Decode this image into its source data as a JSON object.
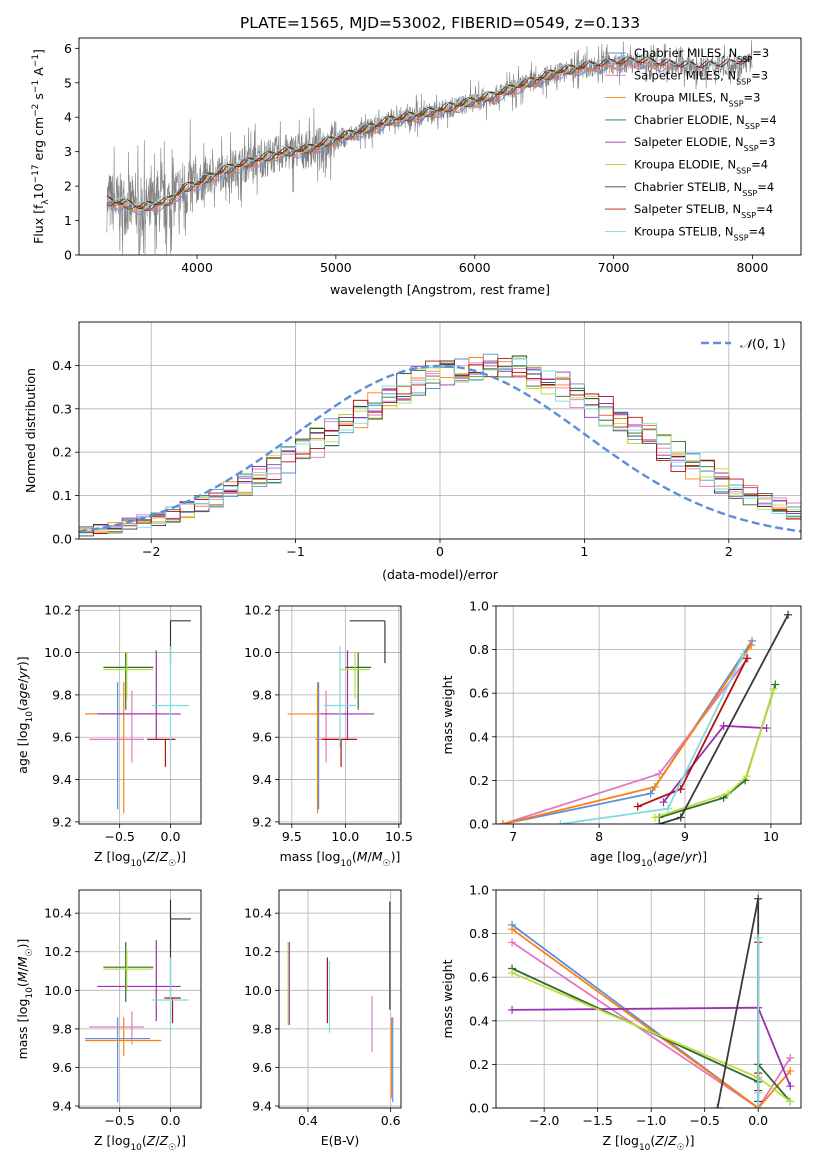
{
  "title": "PLATE=1565, MJD=53002, FIBERID=0549, z=0.133",
  "colors": {
    "Chabrier MILES": "#5b8fd9",
    "Salpeter MILES": "#e377c2",
    "Kroupa MILES": "#ff7f0e",
    "Chabrier ELODIE": "#2f6b2f",
    "Salpeter ELODIE": "#9b30b0",
    "Kroupa ELODIE": "#b8e03a",
    "Chabrier STELIB": "#3a3a3a",
    "Salpeter STELIB": "#b01010",
    "Kroupa STELIB": "#7fdbe0",
    "normal": "#5b8fd9",
    "data": "#808080"
  },
  "chart_data": [
    {
      "type": "line",
      "panel": "spectrum",
      "xlabel": "wavelength [Angstrom, rest frame]",
      "ylabel": "Flux [f_λ 10^-17 erg cm^-2 s^-1 A^-1]",
      "xlim": [
        3150,
        8350
      ],
      "ylim": [
        0,
        6.3
      ],
      "xticks": [
        4000,
        5000,
        6000,
        7000,
        8000
      ],
      "yticks": [
        0,
        1,
        2,
        3,
        4,
        5,
        6
      ],
      "grid": false,
      "legend_position": "top-right",
      "continuum": {
        "x": [
          3350,
          3500,
          3600,
          3700,
          3800,
          3900,
          4000,
          4100,
          4200,
          4400,
          4600,
          4800,
          5000,
          5200,
          5400,
          5600,
          5800,
          6000,
          6200,
          6400,
          6600,
          6800,
          7000,
          7200,
          7400,
          7600,
          7800,
          8000
        ],
        "y": [
          1.55,
          1.45,
          1.35,
          1.45,
          1.55,
          1.9,
          2.05,
          2.25,
          2.45,
          2.7,
          2.95,
          3.05,
          3.35,
          3.6,
          3.9,
          4.05,
          4.25,
          4.45,
          4.7,
          5.0,
          5.3,
          5.45,
          5.55,
          5.6,
          5.5,
          5.45,
          5.5,
          5.6
        ]
      },
      "legend": [
        {
          "name": "Chabrier MILES, N_SSP=3",
          "key": "Chabrier MILES"
        },
        {
          "name": "Salpeter MILES, N_SSP=3",
          "key": "Salpeter MILES"
        },
        {
          "name": "Kroupa MILES, N_SSP=3",
          "key": "Kroupa MILES"
        },
        {
          "name": "Chabrier ELODIE, N_SSP=4",
          "key": "Chabrier ELODIE"
        },
        {
          "name": "Salpeter ELODIE, N_SSP=3",
          "key": "Salpeter ELODIE"
        },
        {
          "name": "Kroupa ELODIE, N_SSP=4",
          "key": "Kroupa ELODIE"
        },
        {
          "name": "Chabrier STELIB, N_SSP=4",
          "key": "Chabrier STELIB"
        },
        {
          "name": "Salpeter STELIB, N_SSP=4",
          "key": "Salpeter STELIB"
        },
        {
          "name": "Kroupa STELIB, N_SSP=4",
          "key": "Kroupa STELIB"
        }
      ]
    },
    {
      "type": "step",
      "panel": "residuals",
      "xlabel": "(data-model)/error",
      "ylabel": "Normed distribution",
      "xlim": [
        -2.5,
        2.5
      ],
      "ylim": [
        0,
        0.5
      ],
      "xticks": [
        -2,
        -1,
        0,
        1,
        2
      ],
      "yticks": [
        0.0,
        0.1,
        0.2,
        0.3,
        0.4
      ],
      "grid": true,
      "bin_width": 0.1,
      "bins_start": -2.5,
      "mean_profile": [
        0.018,
        0.022,
        0.027,
        0.033,
        0.04,
        0.048,
        0.057,
        0.067,
        0.079,
        0.092,
        0.107,
        0.123,
        0.141,
        0.16,
        0.18,
        0.2,
        0.222,
        0.244,
        0.266,
        0.288,
        0.309,
        0.329,
        0.347,
        0.363,
        0.377,
        0.387,
        0.395,
        0.399,
        0.4,
        0.397,
        0.39,
        0.38,
        0.367,
        0.351,
        0.334,
        0.315,
        0.295,
        0.274,
        0.253,
        0.232,
        0.211,
        0.19,
        0.17,
        0.151,
        0.133,
        0.117,
        0.101,
        0.087,
        0.075,
        0.064
      ],
      "normal_curve": {
        "name": "N(0,1)",
        "mean": 0,
        "sigma": 1
      },
      "legend_position": "top-right"
    },
    {
      "type": "errorbar",
      "panel": "age_vs_Z",
      "xlabel": "Z [log10(Z/Z☉)]",
      "ylabel": "age [log10(age/yr)]",
      "xlim": [
        -0.9,
        0.3
      ],
      "ylim": [
        9.19,
        10.22
      ],
      "xticks": [
        -0.5,
        0.0
      ],
      "yticks": [
        9.2,
        9.4,
        9.6,
        9.8,
        10.0,
        10.2
      ],
      "grid": true,
      "points": [
        {
          "key": "Chabrier MILES",
          "x": -0.52,
          "y": 9.71,
          "xerr": [
            0.32,
            0.32
          ],
          "yerr": [
            0.45,
            0.15
          ]
        },
        {
          "key": "Salpeter MILES",
          "x": -0.38,
          "y": 9.59,
          "xerr": [
            0.42,
            0.12
          ],
          "yerr": [
            0.11,
            0.23
          ]
        },
        {
          "key": "Kroupa MILES",
          "x": -0.46,
          "y": 9.71,
          "xerr": [
            0.38,
            0.37
          ],
          "yerr": [
            0.47,
            0.15
          ]
        },
        {
          "key": "Chabrier ELODIE",
          "x": -0.44,
          "y": 9.93,
          "xerr": [
            0.22,
            0.27
          ],
          "yerr": [
            0.2,
            0.07
          ]
        },
        {
          "key": "Salpeter ELODIE",
          "x": -0.14,
          "y": 9.71,
          "xerr": [
            0.58,
            0.24
          ],
          "yerr": [
            0.12,
            0.3
          ]
        },
        {
          "key": "Kroupa ELODIE",
          "x": -0.43,
          "y": 9.92,
          "xerr": [
            0.23,
            0.26
          ],
          "yerr": [
            0.14,
            0.08
          ]
        },
        {
          "key": "Chabrier STELIB",
          "x": 0.0,
          "y": 10.15,
          "xerr": [
            0.0,
            0.2
          ],
          "yerr": [
            0.2,
            0.0
          ]
        },
        {
          "key": "Salpeter STELIB",
          "x": -0.05,
          "y": 9.59,
          "xerr": [
            0.18,
            0.1
          ],
          "yerr": [
            0.13,
            0.0
          ]
        },
        {
          "key": "Kroupa STELIB",
          "x": 0.0,
          "y": 9.75,
          "xerr": [
            0.18,
            0.18
          ],
          "yerr": [
            0.2,
            0.28
          ]
        }
      ]
    },
    {
      "type": "errorbar",
      "panel": "age_vs_mass",
      "xlabel": "mass [log10(M/M☉)]",
      "ylabel": "",
      "xlim": [
        9.38,
        10.52
      ],
      "ylim": [
        9.19,
        10.22
      ],
      "xticks": [
        9.5,
        10.0,
        10.5
      ],
      "yticks": [
        9.2,
        9.4,
        9.6,
        9.8,
        10.0,
        10.2
      ],
      "grid": true,
      "points": [
        {
          "key": "Chabrier MILES",
          "x": 9.75,
          "y": 9.71,
          "xerr": [
            0.03,
            0.03
          ],
          "yerr": [
            0.45,
            0.15
          ]
        },
        {
          "key": "Salpeter MILES",
          "x": 9.82,
          "y": 9.59,
          "xerr": [
            0.1,
            0.12
          ],
          "yerr": [
            0.11,
            0.23
          ]
        },
        {
          "key": "Kroupa MILES",
          "x": 9.74,
          "y": 9.71,
          "xerr": [
            0.28,
            0.13
          ],
          "yerr": [
            0.47,
            0.15
          ]
        },
        {
          "key": "Chabrier ELODIE",
          "x": 10.12,
          "y": 9.93,
          "xerr": [
            0.12,
            0.12
          ],
          "yerr": [
            0.2,
            0.07
          ]
        },
        {
          "key": "Salpeter ELODIE",
          "x": 10.02,
          "y": 9.71,
          "xerr": [
            0.25,
            0.25
          ],
          "yerr": [
            0.12,
            0.3
          ]
        },
        {
          "key": "Kroupa ELODIE",
          "x": 10.09,
          "y": 9.92,
          "xerr": [
            0.14,
            0.14
          ],
          "yerr": [
            0.14,
            0.08
          ]
        },
        {
          "key": "Chabrier STELIB",
          "x": 10.37,
          "y": 10.15,
          "xerr": [
            0.33,
            0.0
          ],
          "yerr": [
            0.2,
            0.0
          ]
        },
        {
          "key": "Salpeter STELIB",
          "x": 9.96,
          "y": 9.59,
          "xerr": [
            0.18,
            0.15
          ],
          "yerr": [
            0.13,
            0.0
          ]
        },
        {
          "key": "Kroupa STELIB",
          "x": 9.95,
          "y": 9.75,
          "xerr": [
            0.15,
            0.15
          ],
          "yerr": [
            0.2,
            0.28
          ]
        }
      ]
    },
    {
      "type": "line",
      "panel": "massweight_vs_age",
      "xlabel": "age  [log10(age/yr)]",
      "ylabel": "mass weight",
      "xlim": [
        6.8,
        10.35
      ],
      "ylim": [
        0,
        1.0
      ],
      "xticks": [
        7,
        8,
        9,
        10
      ],
      "yticks": [
        0.0,
        0.2,
        0.4,
        0.6,
        0.8,
        1.0
      ],
      "grid": true,
      "series": [
        {
          "key": "Chabrier MILES",
          "x": [
            6.88,
            8.6,
            9.78
          ],
          "y": [
            0.0,
            0.14,
            0.84
          ]
        },
        {
          "key": "Salpeter MILES",
          "x": [
            6.88,
            8.7,
            9.73
          ],
          "y": [
            0.0,
            0.23,
            0.76
          ]
        },
        {
          "key": "Kroupa MILES",
          "x": [
            6.88,
            8.65,
            9.77
          ],
          "y": [
            0.0,
            0.17,
            0.82
          ]
        },
        {
          "key": "Chabrier ELODIE",
          "x": [
            8.7,
            9.45,
            9.7,
            10.05
          ],
          "y": [
            0.03,
            0.12,
            0.2,
            0.64
          ]
        },
        {
          "key": "Salpeter ELODIE",
          "x": [
            8.75,
            9.45,
            9.95
          ],
          "y": [
            0.1,
            0.45,
            0.44
          ]
        },
        {
          "key": "Kroupa ELODIE",
          "x": [
            8.65,
            9.5,
            9.72,
            10.03
          ],
          "y": [
            0.03,
            0.14,
            0.22,
            0.62
          ]
        },
        {
          "key": "Chabrier STELIB",
          "x": [
            8.7,
            8.95,
            10.2
          ],
          "y": [
            0.0,
            0.03,
            0.96
          ]
        },
        {
          "key": "Salpeter STELIB",
          "x": [
            8.45,
            8.95,
            9.72
          ],
          "y": [
            0.08,
            0.16,
            0.76
          ]
        },
        {
          "key": "Kroupa STELIB",
          "x": [
            7.55,
            8.8,
            9.68
          ],
          "y": [
            0.0,
            0.07,
            0.78
          ]
        }
      ]
    },
    {
      "type": "errorbar",
      "panel": "mass_vs_Z",
      "xlabel": "Z [log10(Z/Z☉)]",
      "ylabel": "mass [log10(M/M☉)]",
      "xlim": [
        -0.9,
        0.3
      ],
      "ylim": [
        9.39,
        10.52
      ],
      "xticks": [
        -0.5,
        0.0
      ],
      "yticks": [
        9.4,
        9.6,
        9.8,
        10.0,
        10.2,
        10.4
      ],
      "grid": true,
      "points": [
        {
          "key": "Chabrier MILES",
          "x": -0.52,
          "y": 9.75,
          "xerr": [
            0.32,
            0.32
          ],
          "yerr": [
            0.33,
            0.11
          ]
        },
        {
          "key": "Salpeter MILES",
          "x": -0.38,
          "y": 9.81,
          "xerr": [
            0.42,
            0.12
          ],
          "yerr": [
            0.09,
            0.08
          ]
        },
        {
          "key": "Kroupa MILES",
          "x": -0.46,
          "y": 9.74,
          "xerr": [
            0.38,
            0.37
          ],
          "yerr": [
            0.08,
            0.12
          ]
        },
        {
          "key": "Chabrier ELODIE",
          "x": -0.44,
          "y": 10.12,
          "xerr": [
            0.22,
            0.27
          ],
          "yerr": [
            0.18,
            0.13
          ]
        },
        {
          "key": "Salpeter ELODIE",
          "x": -0.14,
          "y": 10.02,
          "xerr": [
            0.58,
            0.24
          ],
          "yerr": [
            0.18,
            0.24
          ]
        },
        {
          "key": "Kroupa ELODIE",
          "x": -0.43,
          "y": 10.11,
          "xerr": [
            0.23,
            0.26
          ],
          "yerr": [
            0.11,
            0.1
          ]
        },
        {
          "key": "Chabrier STELIB",
          "x": 0.0,
          "y": 10.37,
          "xerr": [
            0.0,
            0.2
          ],
          "yerr": [
            0.42,
            0.1
          ]
        },
        {
          "key": "Salpeter STELIB",
          "x": 0.02,
          "y": 9.96,
          "xerr": [
            0.08,
            0.08
          ],
          "yerr": [
            0.13,
            0.0
          ]
        },
        {
          "key": "Kroupa STELIB",
          "x": 0.0,
          "y": 9.95,
          "xerr": [
            0.18,
            0.18
          ],
          "yerr": [
            0.17,
            0.22
          ]
        }
      ]
    },
    {
      "type": "errorbar",
      "panel": "mass_vs_EBV",
      "xlabel": "E(B-V)",
      "ylabel": "",
      "xlim": [
        0.33,
        0.625
      ],
      "ylim": [
        9.39,
        10.52
      ],
      "xticks": [
        0.4,
        0.6
      ],
      "yticks": [
        9.4,
        9.6,
        9.8,
        10.0,
        10.2,
        10.4
      ],
      "grid": true,
      "points": [
        {
          "key": "Chabrier MILES",
          "x": 0.605,
          "y": 9.75,
          "xerr": [
            0,
            0
          ],
          "yerr": [
            0.33,
            0.11
          ]
        },
        {
          "key": "Salpeter MILES",
          "x": 0.555,
          "y": 9.81,
          "xerr": [
            0,
            0
          ],
          "yerr": [
            0.13,
            0.16
          ]
        },
        {
          "key": "Kroupa MILES",
          "x": 0.602,
          "y": 9.74,
          "xerr": [
            0,
            0
          ],
          "yerr": [
            0.3,
            0.12
          ]
        },
        {
          "key": "Chabrier ELODIE",
          "x": 0.352,
          "y": 10.12,
          "xerr": [
            0,
            0
          ],
          "yerr": [
            0.3,
            0.13
          ]
        },
        {
          "key": "Salpeter ELODIE",
          "x": 0.355,
          "y": 10.02,
          "xerr": [
            0,
            0
          ],
          "yerr": [
            0.2,
            0.23
          ]
        },
        {
          "key": "Kroupa ELODIE",
          "x": 0.352,
          "y": 10.05,
          "xerr": [
            0,
            0
          ],
          "yerr": [
            0.23,
            0.2
          ]
        },
        {
          "key": "Chabrier STELIB",
          "x": 0.598,
          "y": 10.2,
          "xerr": [
            0,
            0
          ],
          "yerr": [
            0.3,
            0.26
          ]
        },
        {
          "key": "Salpeter STELIB",
          "x": 0.447,
          "y": 9.99,
          "xerr": [
            0,
            0
          ],
          "yerr": [
            0.16,
            0.18
          ]
        },
        {
          "key": "Kroupa STELIB",
          "x": 0.452,
          "y": 9.95,
          "xerr": [
            0,
            0
          ],
          "yerr": [
            0.17,
            0.2
          ]
        }
      ]
    },
    {
      "type": "line",
      "panel": "massweight_vs_Z",
      "xlabel": "Z [log10(Z/Z☉)]",
      "ylabel": "mass weight",
      "xlim": [
        -2.45,
        0.4
      ],
      "ylim": [
        0,
        1.0
      ],
      "xticks": [
        -2.0,
        -1.5,
        -1.0,
        -0.5,
        0.0
      ],
      "yticks": [
        0.0,
        0.2,
        0.4,
        0.6,
        0.8,
        1.0
      ],
      "grid": true,
      "series": [
        {
          "key": "Chabrier MILES",
          "x": [
            -2.3,
            0.0,
            0.0
          ],
          "y": [
            0.84,
            0.0,
            0.14
          ]
        },
        {
          "key": "Salpeter MILES",
          "x": [
            -2.3,
            0.0,
            0.3
          ],
          "y": [
            0.76,
            0.0,
            0.23
          ]
        },
        {
          "key": "Kroupa MILES",
          "x": [
            -2.3,
            0.0,
            0.3
          ],
          "y": [
            0.82,
            0.0,
            0.17
          ]
        },
        {
          "key": "Chabrier ELODIE",
          "x": [
            -2.3,
            0.0,
            0.0,
            0.3
          ],
          "y": [
            0.64,
            0.12,
            0.2,
            0.03
          ]
        },
        {
          "key": "Salpeter ELODIE",
          "x": [
            -2.3,
            0.0,
            0.3
          ],
          "y": [
            0.45,
            0.46,
            0.1
          ]
        },
        {
          "key": "Kroupa ELODIE",
          "x": [
            -2.3,
            0.0,
            0.3
          ],
          "y": [
            0.62,
            0.14,
            0.03
          ]
        },
        {
          "key": "Chabrier STELIB",
          "x": [
            -0.38,
            0.0,
            0.0
          ],
          "y": [
            0.0,
            0.96,
            0.03
          ]
        },
        {
          "key": "Salpeter STELIB",
          "x": [
            0.0,
            0.0,
            0.0
          ],
          "y": [
            0.76,
            0.16,
            0.08
          ]
        },
        {
          "key": "Kroupa STELIB",
          "x": [
            0.0,
            0.0,
            0.0
          ],
          "y": [
            0.78,
            0.07,
            0.0
          ]
        }
      ]
    }
  ]
}
